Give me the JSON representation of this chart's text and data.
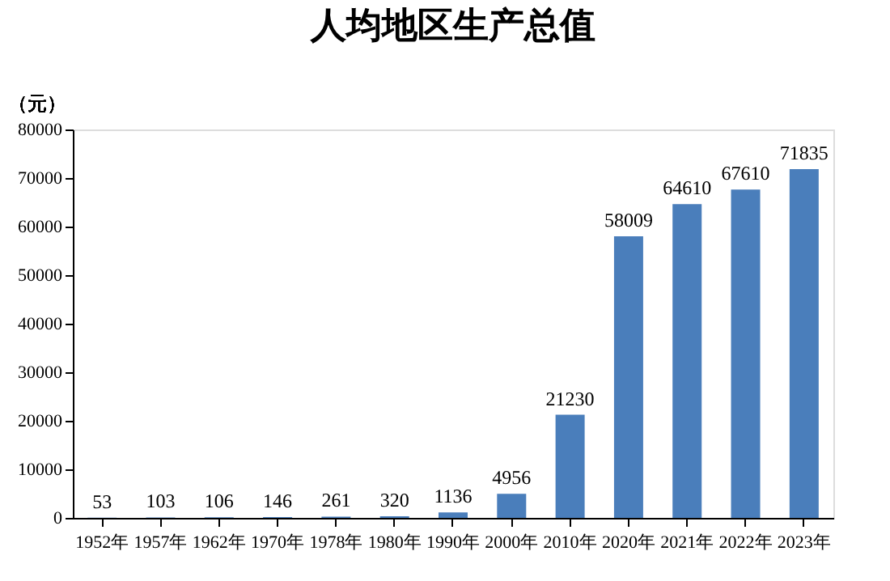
{
  "chart_data": {
    "type": "bar",
    "title": "人均地区生产总值",
    "ylabel": "（元）",
    "categories": [
      "1952年",
      "1957年",
      "1962年",
      "1970年",
      "1978年",
      "1980年",
      "1990年",
      "2000年",
      "2010年",
      "2020年",
      "2021年",
      "2022年",
      "2023年"
    ],
    "values": [
      53,
      103,
      106,
      146,
      261,
      320,
      1136,
      4956,
      21230,
      58009,
      64610,
      67610,
      71835
    ],
    "color": "#4a7ebb",
    "ylim": [
      0,
      80000
    ],
    "yticks": [
      0,
      10000,
      20000,
      30000,
      40000,
      50000,
      60000,
      70000,
      80000
    ],
    "grid": false,
    "data_labels": true
  }
}
